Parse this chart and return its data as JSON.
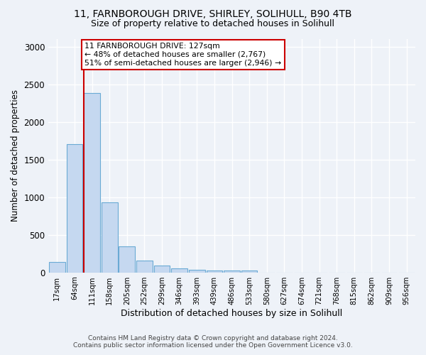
{
  "title1": "11, FARNBOROUGH DRIVE, SHIRLEY, SOLIHULL, B90 4TB",
  "title2": "Size of property relative to detached houses in Solihull",
  "xlabel": "Distribution of detached houses by size in Solihull",
  "ylabel": "Number of detached properties",
  "footer1": "Contains HM Land Registry data © Crown copyright and database right 2024.",
  "footer2": "Contains public sector information licensed under the Open Government Licence v3.0.",
  "annotation_line1": "11 FARNBOROUGH DRIVE: 127sqm",
  "annotation_line2": "← 48% of detached houses are smaller (2,767)",
  "annotation_line3": "51% of semi-detached houses are larger (2,946) →",
  "bar_labels": [
    "17sqm",
    "64sqm",
    "111sqm",
    "158sqm",
    "205sqm",
    "252sqm",
    "299sqm",
    "346sqm",
    "393sqm",
    "439sqm",
    "486sqm",
    "533sqm",
    "580sqm",
    "627sqm",
    "674sqm",
    "721sqm",
    "768sqm",
    "815sqm",
    "862sqm",
    "909sqm",
    "956sqm"
  ],
  "bar_values": [
    140,
    1700,
    2380,
    930,
    350,
    160,
    90,
    55,
    35,
    30,
    25,
    25,
    0,
    0,
    0,
    0,
    0,
    0,
    0,
    0,
    0
  ],
  "bar_color": "#c5d8f0",
  "bar_edge_color": "#6aaad4",
  "vline_bar_index": 2,
  "vline_color": "#cc0000",
  "annotation_box_color": "#cc0000",
  "ylim": [
    0,
    3100
  ],
  "yticks": [
    0,
    500,
    1000,
    1500,
    2000,
    2500,
    3000
  ],
  "bg_color": "#eef2f8",
  "plot_bg_color": "#eef2f8",
  "grid_color": "#ffffff"
}
